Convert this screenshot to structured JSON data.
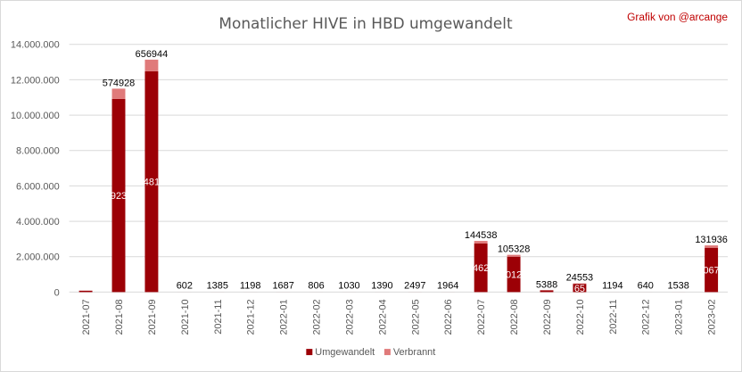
{
  "chart_data": {
    "type": "bar",
    "stacked": true,
    "title": "Monatlicher HIVE in HBD umgewandelt",
    "credit": "Grafik von @arcange",
    "ylim": [
      0,
      14000000
    ],
    "yticks": [
      "0",
      "2.000.000",
      "4.000.000",
      "6.000.000",
      "8.000.000",
      "10.000.000",
      "12.000.000",
      "14.000.000"
    ],
    "ytick_values": [
      0,
      2000000,
      4000000,
      6000000,
      8000000,
      10000000,
      12000000,
      14000000
    ],
    "grid": true,
    "legend_position": "bottom",
    "colors": {
      "converted": "#9c0006",
      "burned": "#e07a7a",
      "gridline": "#d9d9d9"
    },
    "categories": [
      "2021-07",
      "2021-08",
      "2021-09",
      "2021-10",
      "2021-11",
      "2021-12",
      "2022-01",
      "2022-02",
      "2022-03",
      "2022-04",
      "2022-05",
      "2022-06",
      "2022-07",
      "2022-08",
      "2022-09",
      "2022-10",
      "2022-11",
      "2022-12",
      "2023-01",
      "2023-02"
    ],
    "series": [
      {
        "name": "Umgewandelt",
        "values": [
          80000,
          10923000,
          12481000,
          0,
          0,
          0,
          0,
          0,
          0,
          0,
          0,
          0,
          2746200,
          2001200,
          100000,
          466000,
          0,
          0,
          0,
          2506700
        ],
        "inner_labels": [
          "",
          "923",
          "481",
          "",
          "",
          "",
          "",
          "",
          "",
          "",
          "",
          "",
          "462",
          "012",
          "",
          "65",
          "",
          "",
          "",
          "067"
        ]
      },
      {
        "name": "Verbrannt",
        "values": [
          0,
          574928,
          656944,
          602,
          1385,
          1198,
          1687,
          806,
          1030,
          1390,
          2497,
          1964,
          144538,
          105328,
          5388,
          24553,
          1194,
          640,
          1538,
          131936
        ],
        "top_labels": [
          "",
          "574928",
          "656944",
          "602",
          "1385",
          "1198",
          "1687",
          "806",
          "1030",
          "1390",
          "2497",
          "1964",
          "144538",
          "105328",
          "5388",
          "24553",
          "1194",
          "640",
          "1538",
          "131936"
        ]
      }
    ]
  }
}
